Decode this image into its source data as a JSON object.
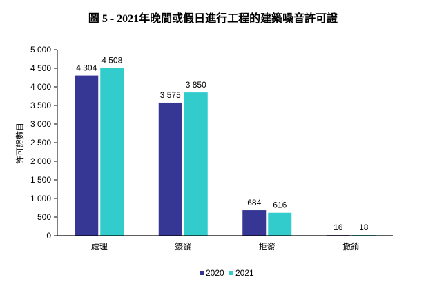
{
  "chart_data": {
    "type": "bar",
    "title": "圖 5 - 2021年晚間或假日進行工程的建築噪音許可證",
    "xlabel": "",
    "ylabel": "許可證數目",
    "categories": [
      "處理",
      "簽發",
      "拒發",
      "撤銷"
    ],
    "series": [
      {
        "name": "2020",
        "values": [
          4304,
          3575,
          684,
          16
        ],
        "labels": [
          "4 304",
          "3 575",
          "684",
          "16"
        ],
        "color": "#363795"
      },
      {
        "name": "2021",
        "values": [
          4508,
          3850,
          616,
          18
        ],
        "labels": [
          "4 508",
          "3 850",
          "616",
          "18"
        ],
        "color": "#33CCCC"
      }
    ],
    "ylim": [
      0,
      5000
    ],
    "yticks": [
      0,
      500,
      1000,
      1500,
      2000,
      2500,
      3000,
      3500,
      4000,
      4500,
      5000
    ],
    "ytick_labels": [
      "0",
      "500",
      "1 000",
      "1 500",
      "2 000",
      "2 500",
      "3 000",
      "3 500",
      "4 000",
      "4 500",
      "5 000"
    ],
    "grid": false,
    "legend": "bottom"
  }
}
